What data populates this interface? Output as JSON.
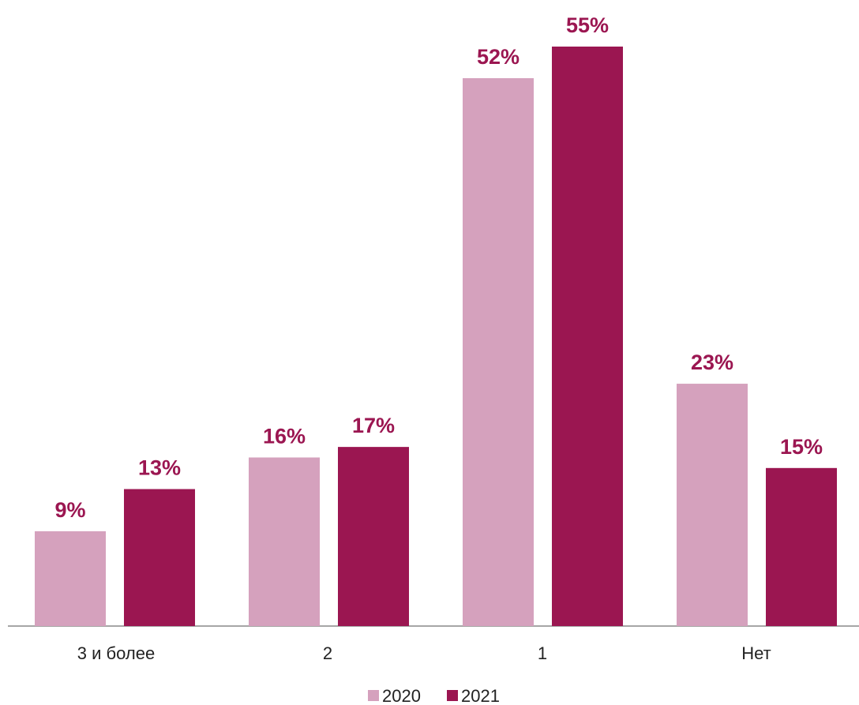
{
  "chart_data": {
    "type": "bar",
    "title": "",
    "xlabel": "",
    "ylabel": "",
    "categories": [
      "3 и более",
      "2",
      "1",
      "Нет"
    ],
    "series": [
      {
        "name": "2020",
        "values": [
          9,
          16,
          52,
          23
        ],
        "labels": [
          "9%",
          "16%",
          "52%",
          "23%"
        ],
        "color": "#d5a1bd"
      },
      {
        "name": "2021",
        "values": [
          13,
          17,
          55,
          15
        ],
        "labels": [
          "13%",
          "17%",
          "55%",
          "15%"
        ],
        "color": "#9b1651"
      }
    ],
    "ylim": [
      0,
      60
    ],
    "grid": false,
    "y_axis_visible": false,
    "legend_position": "bottom-center",
    "value_label_color": "#9b1651",
    "axis_color": "#888888"
  }
}
